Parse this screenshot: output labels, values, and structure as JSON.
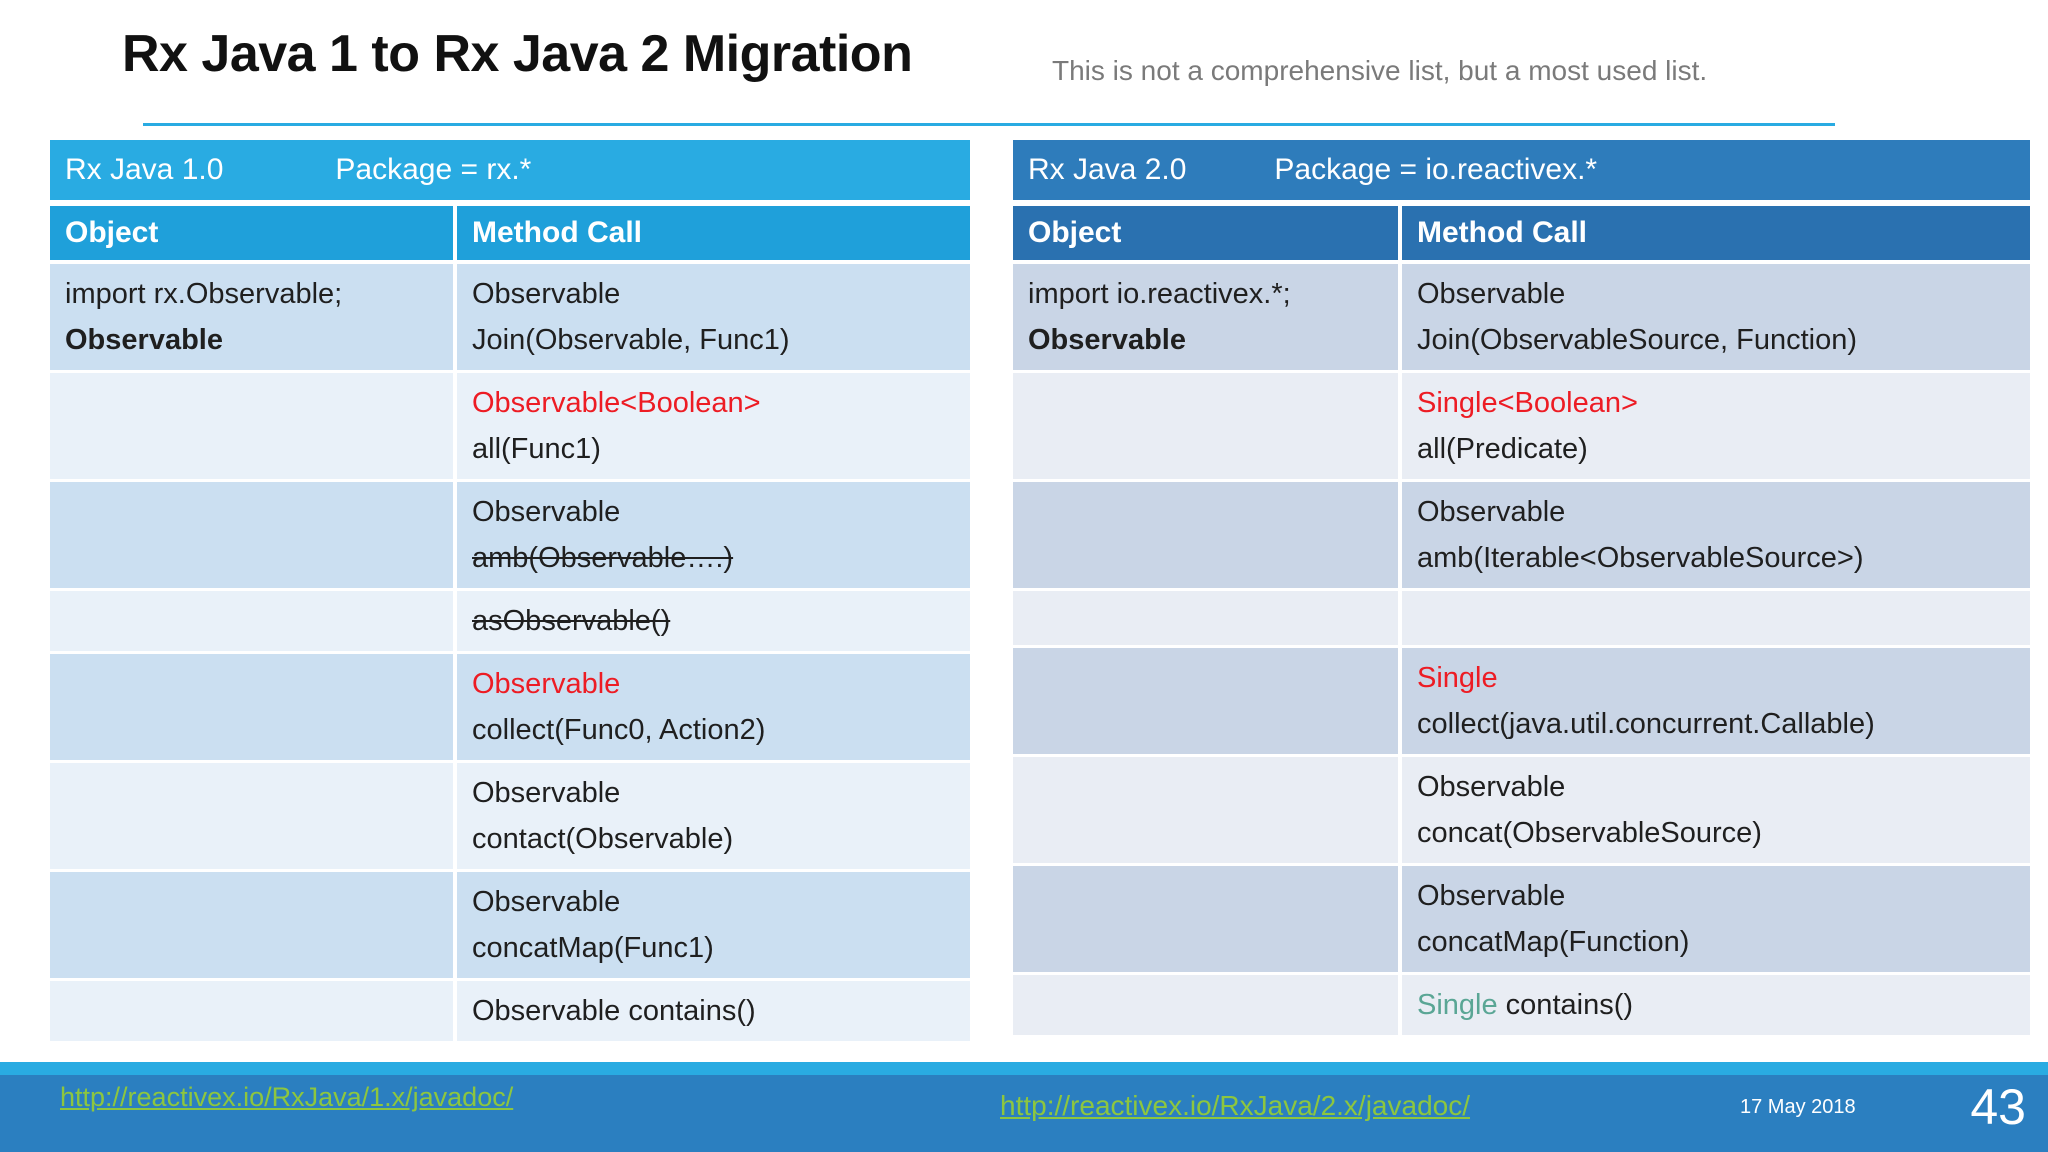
{
  "slide": {
    "title": "Rx Java 1 to Rx Java 2 Migration",
    "subtitle": "This is not a comprehensive list, but a most used  list.",
    "date": "17 May 2018",
    "page_number": "43",
    "link_left": "http://reactivex.io/RxJava/1.x/javadoc/",
    "link_right": "http://reactivex.io/RxJava/2.x/javadoc/"
  },
  "colors": {
    "accent_light_blue": "#29abe2",
    "left_band_blue": "#29abe2",
    "left_header_blue": "#1fa0da",
    "right_band_blue": "#2e7cbb",
    "right_header_blue": "#2a71b0",
    "left_row_odd": "#cbdff1",
    "left_row_even": "#e9f1f9",
    "right_row_odd": "#c9d5e6",
    "right_row_even": "#e9edf4",
    "red": "#ed1c24",
    "teal": "#5aa695",
    "link_green": "#8dc63f",
    "footer_bar_blue": "#2b7fc0",
    "text_dark": "#1f1f1f",
    "subtitle_gray": "#7a7a7a"
  },
  "tables": [
    {
      "band_title": "Rx Java 1.0",
      "band_package": "Package = rx.*",
      "columns": {
        "object": "Object",
        "method": "Method Call"
      },
      "rows": [
        {
          "object": [
            [
              {
                "t": "import rx.Observable;"
              }
            ],
            [
              {
                "t": "Observable",
                "b": true
              }
            ]
          ],
          "method": [
            [
              {
                "t": "Observable"
              }
            ],
            [
              {
                "t": "Join(Observable, Func1)"
              }
            ]
          ]
        },
        {
          "object": [],
          "method": [
            [
              {
                "t": "Observable<Boolean>",
                "c": "red"
              }
            ],
            [
              {
                "t": "all(Func1)"
              }
            ]
          ]
        },
        {
          "object": [],
          "method": [
            [
              {
                "t": "Observable"
              }
            ],
            [
              {
                "t": "amb(Observable….)",
                "s": true
              }
            ]
          ]
        },
        {
          "object": [],
          "method": [
            [
              {
                "t": "asObservable()",
                "s": true
              }
            ]
          ]
        },
        {
          "object": [],
          "method": [
            [
              {
                "t": "Observable",
                "c": "red"
              }
            ],
            [
              {
                "t": "collect(Func0, Action2)"
              }
            ]
          ]
        },
        {
          "object": [],
          "method": [
            [
              {
                "t": "Observable"
              }
            ],
            [
              {
                "t": "contact(Observable)"
              }
            ]
          ]
        },
        {
          "object": [],
          "method": [
            [
              {
                "t": "Observable"
              }
            ],
            [
              {
                "t": "concatMap(Func1)"
              }
            ]
          ]
        },
        {
          "object": [],
          "method": [
            [
              {
                "t": "Observable contains()"
              }
            ]
          ]
        }
      ]
    },
    {
      "band_title": "Rx Java 2.0",
      "band_package": "Package =  io.reactivex.*",
      "columns": {
        "object": "Object",
        "method": "Method Call"
      },
      "rows": [
        {
          "object": [
            [
              {
                "t": "import io.reactivex.*;"
              }
            ],
            [
              {
                "t": "Observable",
                "b": true
              }
            ]
          ],
          "method": [
            [
              {
                "t": "Observable"
              }
            ],
            [
              {
                "t": "Join(ObservableSource, Function)"
              }
            ]
          ]
        },
        {
          "object": [],
          "method": [
            [
              {
                "t": "Single<Boolean>",
                "c": "red"
              }
            ],
            [
              {
                "t": "all(Predicate)"
              }
            ]
          ]
        },
        {
          "object": [],
          "method": [
            [
              {
                "t": "Observable"
              }
            ],
            [
              {
                "t": "amb(Iterable<ObservableSource>)"
              }
            ]
          ]
        },
        {
          "object": [],
          "method": []
        },
        {
          "object": [],
          "method": [
            [
              {
                "t": "Single",
                "c": "red"
              }
            ],
            [
              {
                "t": "collect(java.util.concurrent.Callable)"
              }
            ]
          ]
        },
        {
          "object": [],
          "method": [
            [
              {
                "t": "Observable"
              }
            ],
            [
              {
                "t": "concat(ObservableSource)"
              }
            ]
          ]
        },
        {
          "object": [],
          "method": [
            [
              {
                "t": "Observable"
              }
            ],
            [
              {
                "t": "concatMap(Function)"
              }
            ]
          ]
        },
        {
          "object": [],
          "method": [
            [
              {
                "t": "Single",
                "c": "teal"
              },
              {
                "t": " contains()"
              }
            ]
          ]
        }
      ]
    }
  ]
}
